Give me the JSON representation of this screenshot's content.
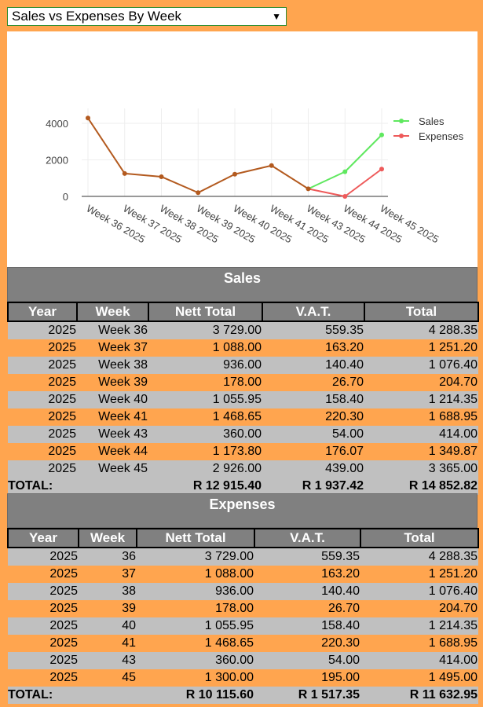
{
  "report_select": {
    "value": "Sales vs Expenses By Week"
  },
  "chart_data": {
    "type": "line",
    "categories": [
      "Week 36 2025",
      "Week 37 2025",
      "Week 38 2025",
      "Week 39 2025",
      "Week 40 2025",
      "Week 41 2025",
      "Week 43 2025",
      "Week 44 2025",
      "Week 45 2025"
    ],
    "series": [
      {
        "name": "Sales",
        "color": "#5fe85f",
        "values": [
          4288.35,
          1251.2,
          1076.4,
          204.7,
          1214.35,
          1688.95,
          414.0,
          1349.87,
          3365.0
        ]
      },
      {
        "name": "Expenses",
        "color": "#ee5a5a",
        "values": [
          4288.35,
          1251.2,
          1076.4,
          204.7,
          1214.35,
          1688.95,
          414.0,
          0,
          1495.0
        ]
      }
    ],
    "overlap_color": "#b35a1f",
    "yticks": [
      0,
      2000,
      4000
    ],
    "ylim": [
      0,
      4600
    ],
    "legend_position": "top-right",
    "grid": true
  },
  "sales": {
    "title": "Sales",
    "headers": [
      "Year",
      "Week",
      "Nett Total",
      "V.A.T.",
      "Total"
    ],
    "rows": [
      [
        "2025",
        "Week 36",
        "3 729.00",
        "559.35",
        "4 288.35"
      ],
      [
        "2025",
        "Week 37",
        "1 088.00",
        "163.20",
        "1 251.20"
      ],
      [
        "2025",
        "Week 38",
        "936.00",
        "140.40",
        "1 076.40"
      ],
      [
        "2025",
        "Week 39",
        "178.00",
        "26.70",
        "204.70"
      ],
      [
        "2025",
        "Week 40",
        "1 055.95",
        "158.40",
        "1 214.35"
      ],
      [
        "2025",
        "Week 41",
        "1 468.65",
        "220.30",
        "1 688.95"
      ],
      [
        "2025",
        "Week 43",
        "360.00",
        "54.00",
        "414.00"
      ],
      [
        "2025",
        "Week 44",
        "1 173.80",
        "176.07",
        "1 349.87"
      ],
      [
        "2025",
        "Week 45",
        "2 926.00",
        "439.00",
        "3 365.00"
      ]
    ],
    "total": {
      "label": "TOTAL:",
      "nett": "R 12 915.40",
      "vat": "R 1 937.42",
      "total": "R 14 852.82"
    }
  },
  "expenses": {
    "title": "Expenses",
    "headers": [
      "Year",
      "Week",
      "Nett Total",
      "V.A.T.",
      "Total"
    ],
    "rows": [
      [
        "2025",
        "36",
        "3 729.00",
        "559.35",
        "4 288.35"
      ],
      [
        "2025",
        "37",
        "1 088.00",
        "163.20",
        "1 251.20"
      ],
      [
        "2025",
        "38",
        "936.00",
        "140.40",
        "1 076.40"
      ],
      [
        "2025",
        "39",
        "178.00",
        "26.70",
        "204.70"
      ],
      [
        "2025",
        "40",
        "1 055.95",
        "158.40",
        "1 214.35"
      ],
      [
        "2025",
        "41",
        "1 468.65",
        "220.30",
        "1 688.95"
      ],
      [
        "2025",
        "43",
        "360.00",
        "54.00",
        "414.00"
      ],
      [
        "2025",
        "45",
        "1 300.00",
        "195.00",
        "1 495.00"
      ]
    ],
    "total": {
      "label": "TOTAL:",
      "nett": "R 10 115.60",
      "vat": "R 1 517.35",
      "total": "R 11 632.95"
    }
  }
}
